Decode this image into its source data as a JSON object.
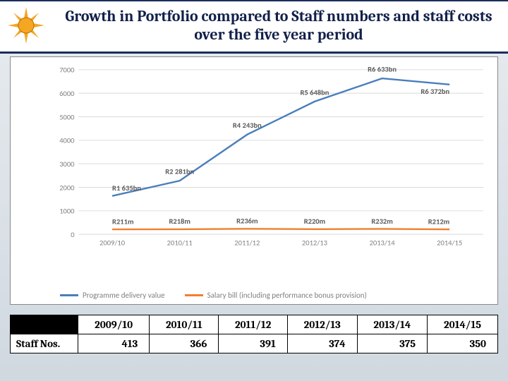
{
  "title": "Growth in Portfolio compared to Staff numbers and staff costs over the five year period",
  "chart": {
    "type": "line",
    "background_color": "#ffffff",
    "grid_color": "#d9d9d9",
    "axis_label_color": "#7f7f7f",
    "axis_fontsize": 11,
    "data_label_fontsize": 11,
    "data_label_color": "#595959",
    "ylim": [
      0,
      7000
    ],
    "ytick_step": 1000,
    "yticks": [
      "0",
      "1000",
      "2000",
      "3000",
      "4000",
      "5000",
      "6000",
      "7000"
    ],
    "categories": [
      "2009/10",
      "2010/11",
      "2011/12",
      "2012/13",
      "2013/14",
      "2014/15"
    ],
    "series": [
      {
        "name": "Programme delivery value",
        "color": "#4a7ebb",
        "line_width": 2.5,
        "values": [
          1635,
          2281,
          4243,
          5648,
          6633,
          6372
        ],
        "labels": [
          "R1 635bn",
          "R2 281bn",
          "R4 243bn",
          "R5 648bn",
          "R6 633bn",
          "R6 372bn"
        ],
        "label_dy": [
          -8,
          -10,
          -10,
          -10,
          -10,
          14
        ]
      },
      {
        "name": "Salary bill (including performance bonus provision)",
        "color": "#f07f2e",
        "line_width": 2.5,
        "values": [
          211,
          218,
          236,
          220,
          232,
          212
        ],
        "labels": [
          "R211m",
          "R218m",
          "R236m",
          "R220m",
          "R232m",
          "R212m"
        ],
        "label_dy": [
          -8,
          -8,
          -8,
          -8,
          -8,
          -8
        ]
      }
    ]
  },
  "table": {
    "row_header": "Staff Nos.",
    "columns": [
      "2009/10",
      "2010/11",
      "2011/12",
      "2012/13",
      "2013/14",
      "2014/15"
    ],
    "values": [
      "413",
      "366",
      "391",
      "374",
      "375",
      "350"
    ]
  }
}
